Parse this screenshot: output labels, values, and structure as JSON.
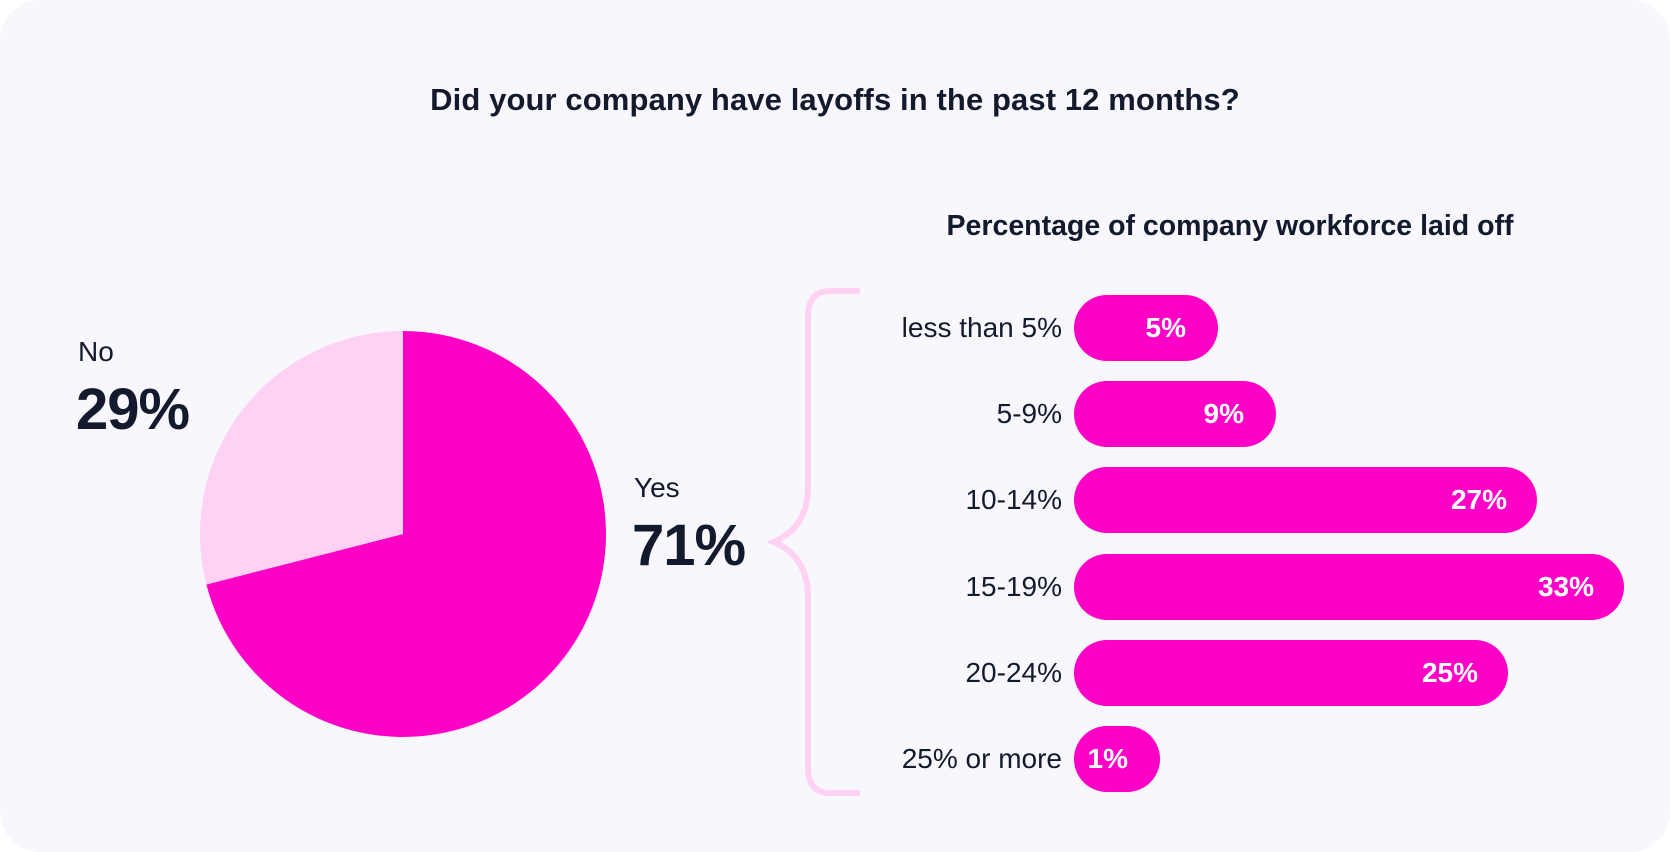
{
  "title": "Did your company have layoffs in the past 12 months?",
  "colors": {
    "primary": "#ff00c7",
    "secondary": "#ffd1f2",
    "text": "#141a2e",
    "background": "#f7f7fd"
  },
  "chart_data": [
    {
      "type": "pie",
      "title": "Did your company have layoffs in the past 12 months?",
      "slices": [
        {
          "name": "Yes",
          "value": 71,
          "label": "71%",
          "color": "#ff00c7"
        },
        {
          "name": "No",
          "value": 29,
          "label": "29%",
          "color": "#ffd1f2"
        }
      ]
    },
    {
      "type": "bar",
      "orientation": "horizontal",
      "title": "Percentage of company workforce laid off",
      "categories": [
        "less than 5%",
        "5-9%",
        "10-14%",
        "15-19%",
        "20-24%",
        "25% or more"
      ],
      "values": [
        5,
        9,
        27,
        33,
        25,
        1
      ],
      "value_labels": [
        "5%",
        "9%",
        "27%",
        "33%",
        "25%",
        "1%"
      ],
      "color": "#ff00c7"
    }
  ]
}
